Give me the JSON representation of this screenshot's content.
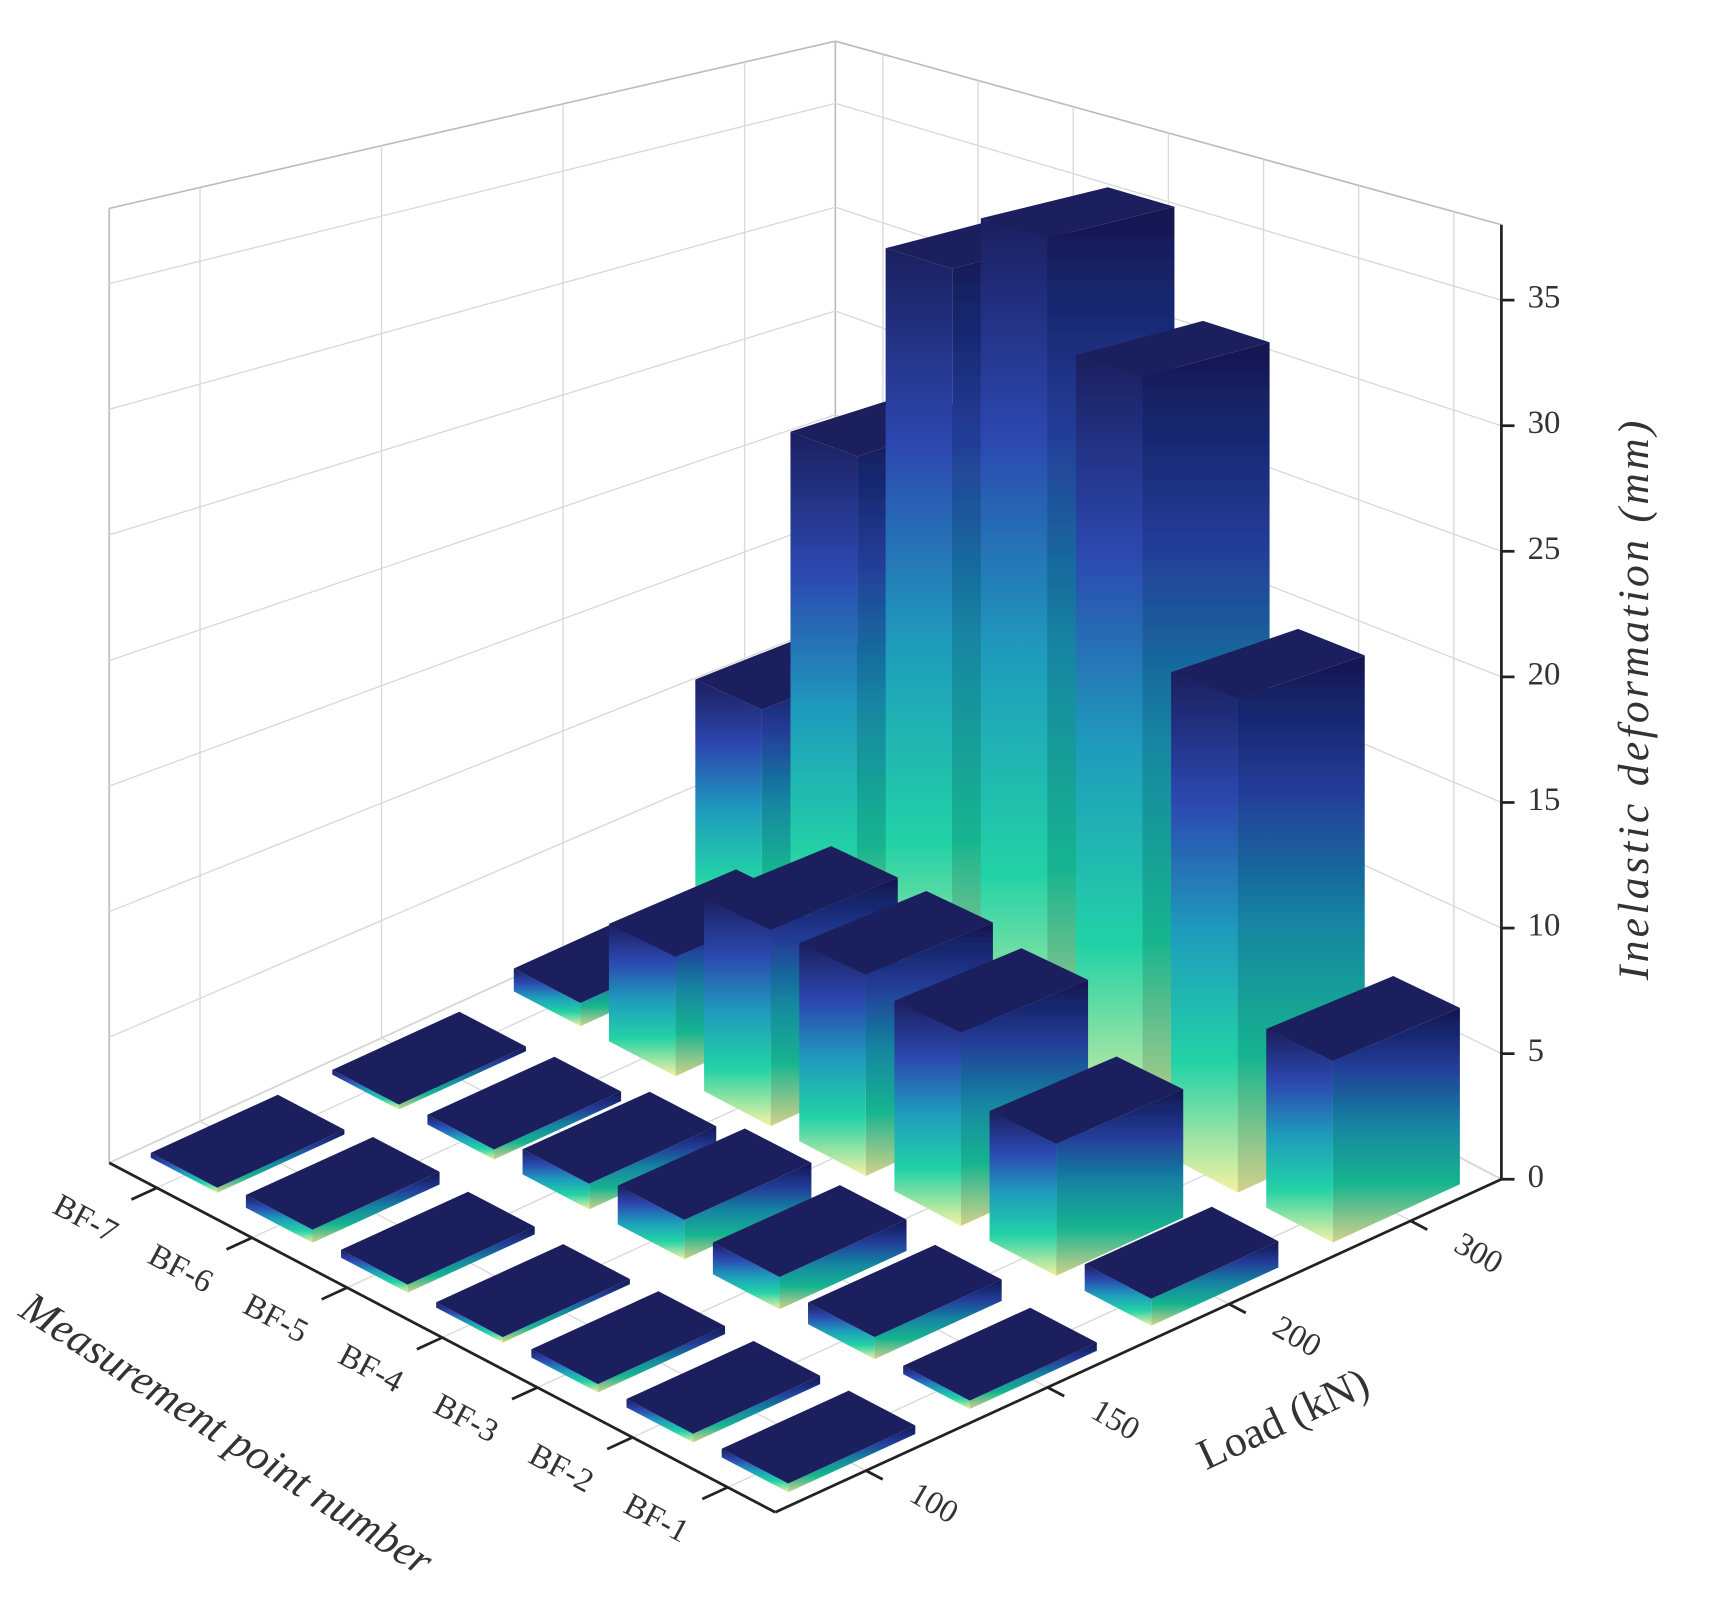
{
  "chart_data": {
    "type": "bar3d",
    "xlabel": "Measurement point number",
    "ylabel": "Load (kN)",
    "zlabel": "Inelastic deformation (mm)",
    "categories": [
      "BF-1",
      "BF-2",
      "BF-3",
      "BF-4",
      "BF-5",
      "BF-6",
      "BF-7"
    ],
    "series": [
      {
        "name": "100",
        "values": [
          0.3,
          0.3,
          0.3,
          0.2,
          0.3,
          0.5,
          0.2
        ]
      },
      {
        "name": "150",
        "values": [
          0.3,
          0.8,
          1.2,
          1.5,
          1.0,
          0.4,
          0.2
        ]
      },
      {
        "name": "200",
        "values": [
          1.0,
          5.0,
          7.5,
          8.0,
          8.0,
          5.0,
          1.0
        ]
      },
      {
        "name": "300",
        "values": [
          7.0,
          19.5,
          31.0,
          35.5,
          33.0,
          23.5,
          10.5
        ]
      }
    ],
    "zlim": [
      0,
      38
    ],
    "zticks": [
      0,
      5,
      10,
      15,
      20,
      25,
      30,
      35
    ],
    "colormap": [
      "#1b1f5e",
      "#2c48b0",
      "#1e9cbc",
      "#22d2a6",
      "#f4f2a2"
    ],
    "grid": true
  }
}
